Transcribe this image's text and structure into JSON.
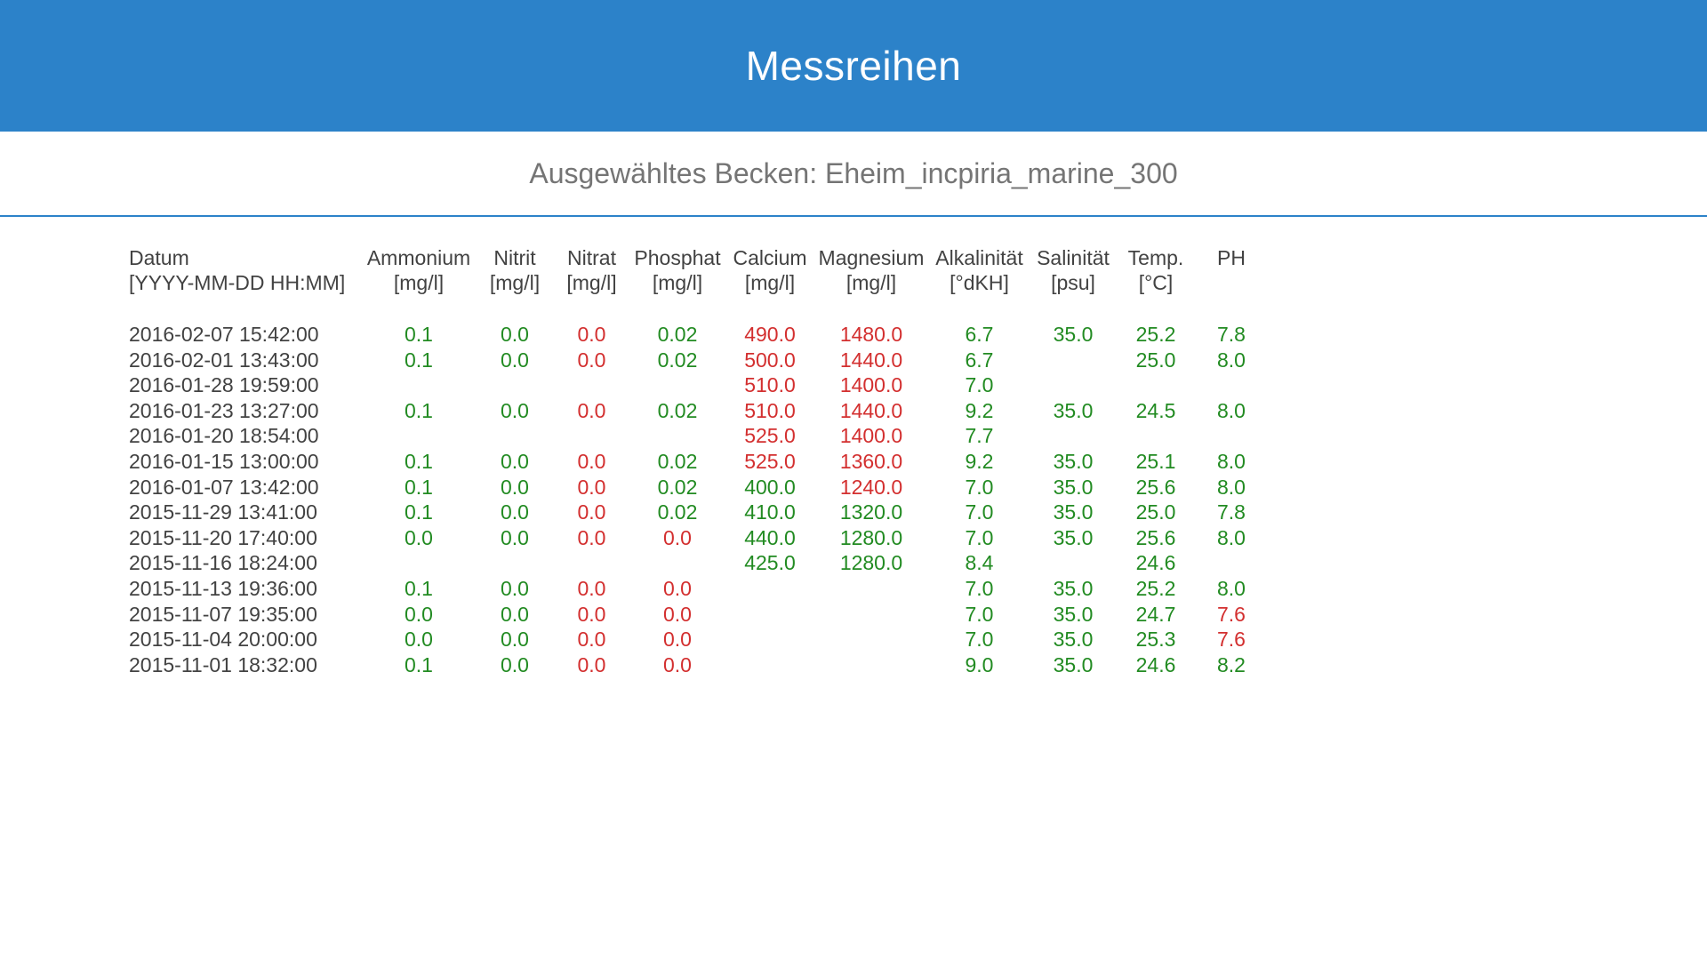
{
  "header": {
    "title": "Messreihen"
  },
  "subtitle": {
    "text": "Ausgewähltes Becken: Eheim_incpiria_marine_300"
  },
  "colors": {
    "header_background": "#2c82c9",
    "divider": "#2c82c9",
    "ok_green": "#228b22",
    "alert_red": "#d32f2f",
    "subtitle_gray": "#757575",
    "text_dark": "#424242"
  },
  "table": {
    "columns": [
      {
        "id": "datum",
        "label": "Datum",
        "unit": "[YYYY-MM-DD HH:MM]"
      },
      {
        "id": "ammonium",
        "label": "Ammonium",
        "unit": "[mg/l]"
      },
      {
        "id": "nitrit",
        "label": "Nitrit",
        "unit": "[mg/l]"
      },
      {
        "id": "nitrat",
        "label": "Nitrat",
        "unit": "[mg/l]"
      },
      {
        "id": "phosphat",
        "label": "Phosphat",
        "unit": "[mg/l]"
      },
      {
        "id": "calcium",
        "label": "Calcium",
        "unit": "[mg/l]"
      },
      {
        "id": "magnesium",
        "label": "Magnesium",
        "unit": "[mg/l]"
      },
      {
        "id": "alkalinitaet",
        "label": "Alkalinität",
        "unit": "[°dKH]"
      },
      {
        "id": "salinitaet",
        "label": "Salinität",
        "unit": "[psu]"
      },
      {
        "id": "temp",
        "label": "Temp.",
        "unit": "[°C]"
      },
      {
        "id": "ph",
        "label": "PH",
        "unit": ""
      }
    ],
    "rows": [
      {
        "date": "2016-02-07 15:42:00",
        "cells": [
          [
            "0.1",
            "g"
          ],
          [
            "0.0",
            "g"
          ],
          [
            "0.0",
            "r"
          ],
          [
            "0.02",
            "g"
          ],
          [
            "490.0",
            "r"
          ],
          [
            "1480.0",
            "r"
          ],
          [
            "6.7",
            "g"
          ],
          [
            "35.0",
            "g"
          ],
          [
            "25.2",
            "g"
          ],
          [
            "7.8",
            "g"
          ]
        ]
      },
      {
        "date": "2016-02-01 13:43:00",
        "cells": [
          [
            "0.1",
            "g"
          ],
          [
            "0.0",
            "g"
          ],
          [
            "0.0",
            "r"
          ],
          [
            "0.02",
            "g"
          ],
          [
            "500.0",
            "r"
          ],
          [
            "1440.0",
            "r"
          ],
          [
            "6.7",
            "g"
          ],
          [
            "",
            ""
          ],
          [
            "25.0",
            "g"
          ],
          [
            "8.0",
            "g"
          ]
        ]
      },
      {
        "date": "2016-01-28 19:59:00",
        "cells": [
          [
            "",
            ""
          ],
          [
            "",
            ""
          ],
          [
            "",
            ""
          ],
          [
            "",
            ""
          ],
          [
            "510.0",
            "r"
          ],
          [
            "1400.0",
            "r"
          ],
          [
            "7.0",
            "g"
          ],
          [
            "",
            ""
          ],
          [
            "",
            ""
          ],
          [
            "",
            ""
          ]
        ]
      },
      {
        "date": "2016-01-23 13:27:00",
        "cells": [
          [
            "0.1",
            "g"
          ],
          [
            "0.0",
            "g"
          ],
          [
            "0.0",
            "r"
          ],
          [
            "0.02",
            "g"
          ],
          [
            "510.0",
            "r"
          ],
          [
            "1440.0",
            "r"
          ],
          [
            "9.2",
            "g"
          ],
          [
            "35.0",
            "g"
          ],
          [
            "24.5",
            "g"
          ],
          [
            "8.0",
            "g"
          ]
        ]
      },
      {
        "date": "2016-01-20 18:54:00",
        "cells": [
          [
            "",
            ""
          ],
          [
            "",
            ""
          ],
          [
            "",
            ""
          ],
          [
            "",
            ""
          ],
          [
            "525.0",
            "r"
          ],
          [
            "1400.0",
            "r"
          ],
          [
            "7.7",
            "g"
          ],
          [
            "",
            ""
          ],
          [
            "",
            ""
          ],
          [
            "",
            ""
          ]
        ]
      },
      {
        "date": "2016-01-15 13:00:00",
        "cells": [
          [
            "0.1",
            "g"
          ],
          [
            "0.0",
            "g"
          ],
          [
            "0.0",
            "r"
          ],
          [
            "0.02",
            "g"
          ],
          [
            "525.0",
            "r"
          ],
          [
            "1360.0",
            "r"
          ],
          [
            "9.2",
            "g"
          ],
          [
            "35.0",
            "g"
          ],
          [
            "25.1",
            "g"
          ],
          [
            "8.0",
            "g"
          ]
        ]
      },
      {
        "date": "2016-01-07 13:42:00",
        "cells": [
          [
            "0.1",
            "g"
          ],
          [
            "0.0",
            "g"
          ],
          [
            "0.0",
            "r"
          ],
          [
            "0.02",
            "g"
          ],
          [
            "400.0",
            "g"
          ],
          [
            "1240.0",
            "r"
          ],
          [
            "7.0",
            "g"
          ],
          [
            "35.0",
            "g"
          ],
          [
            "25.6",
            "g"
          ],
          [
            "8.0",
            "g"
          ]
        ]
      },
      {
        "date": "2015-11-29 13:41:00",
        "cells": [
          [
            "0.1",
            "g"
          ],
          [
            "0.0",
            "g"
          ],
          [
            "0.0",
            "r"
          ],
          [
            "0.02",
            "g"
          ],
          [
            "410.0",
            "g"
          ],
          [
            "1320.0",
            "g"
          ],
          [
            "7.0",
            "g"
          ],
          [
            "35.0",
            "g"
          ],
          [
            "25.0",
            "g"
          ],
          [
            "7.8",
            "g"
          ]
        ]
      },
      {
        "date": "2015-11-20 17:40:00",
        "cells": [
          [
            "0.0",
            "g"
          ],
          [
            "0.0",
            "g"
          ],
          [
            "0.0",
            "r"
          ],
          [
            "0.0",
            "r"
          ],
          [
            "440.0",
            "g"
          ],
          [
            "1280.0",
            "g"
          ],
          [
            "7.0",
            "g"
          ],
          [
            "35.0",
            "g"
          ],
          [
            "25.6",
            "g"
          ],
          [
            "8.0",
            "g"
          ]
        ]
      },
      {
        "date": "2015-11-16 18:24:00",
        "cells": [
          [
            "",
            ""
          ],
          [
            "",
            ""
          ],
          [
            "",
            ""
          ],
          [
            "",
            ""
          ],
          [
            "425.0",
            "g"
          ],
          [
            "1280.0",
            "g"
          ],
          [
            "8.4",
            "g"
          ],
          [
            "",
            ""
          ],
          [
            "24.6",
            "g"
          ],
          [
            "",
            ""
          ]
        ]
      },
      {
        "date": "2015-11-13 19:36:00",
        "cells": [
          [
            "0.1",
            "g"
          ],
          [
            "0.0",
            "g"
          ],
          [
            "0.0",
            "r"
          ],
          [
            "0.0",
            "r"
          ],
          [
            "",
            ""
          ],
          [
            "",
            ""
          ],
          [
            "7.0",
            "g"
          ],
          [
            "35.0",
            "g"
          ],
          [
            "25.2",
            "g"
          ],
          [
            "8.0",
            "g"
          ]
        ]
      },
      {
        "date": "2015-11-07 19:35:00",
        "cells": [
          [
            "0.0",
            "g"
          ],
          [
            "0.0",
            "g"
          ],
          [
            "0.0",
            "r"
          ],
          [
            "0.0",
            "r"
          ],
          [
            "",
            ""
          ],
          [
            "",
            ""
          ],
          [
            "7.0",
            "g"
          ],
          [
            "35.0",
            "g"
          ],
          [
            "24.7",
            "g"
          ],
          [
            "7.6",
            "r"
          ]
        ]
      },
      {
        "date": "2015-11-04 20:00:00",
        "cells": [
          [
            "0.0",
            "g"
          ],
          [
            "0.0",
            "g"
          ],
          [
            "0.0",
            "r"
          ],
          [
            "0.0",
            "r"
          ],
          [
            "",
            ""
          ],
          [
            "",
            ""
          ],
          [
            "7.0",
            "g"
          ],
          [
            "35.0",
            "g"
          ],
          [
            "25.3",
            "g"
          ],
          [
            "7.6",
            "r"
          ]
        ]
      },
      {
        "date": "2015-11-01 18:32:00",
        "cells": [
          [
            "0.1",
            "g"
          ],
          [
            "0.0",
            "g"
          ],
          [
            "0.0",
            "r"
          ],
          [
            "0.0",
            "r"
          ],
          [
            "",
            ""
          ],
          [
            "",
            ""
          ],
          [
            "9.0",
            "g"
          ],
          [
            "35.0",
            "g"
          ],
          [
            "24.6",
            "g"
          ],
          [
            "8.2",
            "g"
          ]
        ]
      }
    ]
  }
}
